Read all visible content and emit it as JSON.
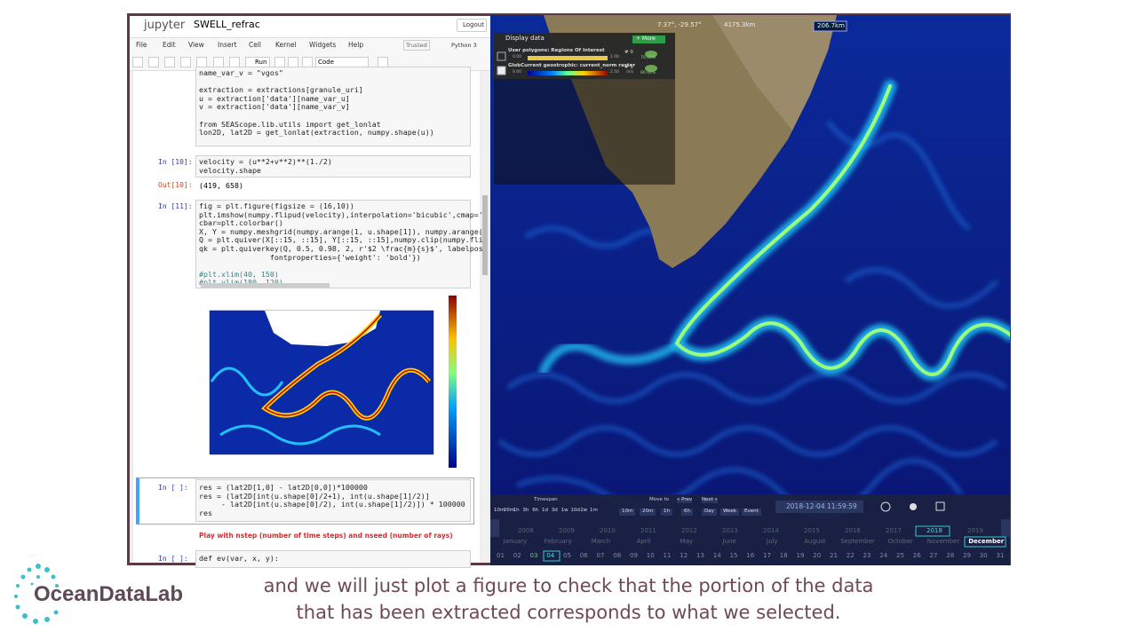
{
  "jupyter": {
    "logo": "jupyter",
    "notebook": "SWELL_refrac",
    "logout": "Logout",
    "menu": [
      "File",
      "Edit",
      "View",
      "Insert",
      "Cell",
      "Kernel",
      "Widgets",
      "Help"
    ],
    "trusted": "Trusted",
    "kernel": "Python 3",
    "run": "Run",
    "cell_type": "Code",
    "cells": [
      {
        "blocks": [
          [
            "name_var_v = \"vgos\""
          ],
          [
            "extraction = extractions[granule_uri]",
            "u = extraction['data'][name_var_u]",
            "v = extraction['data'][name_var_v]"
          ],
          [
            "from SEAScope.lib.utils import get_lonlat",
            "lon2D, lat2D = get_lonlat(extraction, numpy.shape(u))"
          ]
        ]
      },
      {
        "prompt": "In [10]:",
        "blocks": [
          [
            "velocity = (u**2+v**2)**(1./2)",
            "velocity.shape"
          ]
        ],
        "out_prompt": "Out[10]:",
        "output": "(419, 658)"
      },
      {
        "prompt": "In [11]:",
        "blocks": [
          [
            "fig = plt.figure(figsize = (16,10))",
            "plt.imshow(numpy.flipud(velocity),interpolation='bicubic',cmap='",
            "cbar=plt.colorbar()",
            "X, Y = numpy.meshgrid(numpy.arange(1, u.shape[1]), numpy.arange(",
            "Q = plt.quiver(X[::15, ::15], Y[::15, ::15],numpy.clip(numpy.fli",
            "qk = plt.quiverkey(Q, 0.5, 0.98, 2, r'$2 \\frac{m}{s}$', labelpos",
            "                fontproperties={'weight': 'bold'})"
          ],
          [
            "#plt.xlim(40, 150)",
            "#plt.ylim(180, 120)"
          ]
        ]
      },
      {
        "prompt": "In [ ]:",
        "blocks": [
          [
            "res = (lat2D[1,0] - lat2D[0,0])*100000",
            "res = (lat2D[int(u.shape[0]/2+1), int(u.shape[1]/2)]",
            "     - lat2D[int(u.shape[0]/2), int(u.shape[1]/2)]) * 100000",
            "res"
          ]
        ]
      },
      {
        "prompt": "In [ ]:",
        "blocks": [
          [
            "def ev(var, x, y):"
          ]
        ]
      }
    ],
    "note": "Play with nstep (number of time steps) and nseed (number of rays)"
  },
  "map": {
    "coords": "7.37°, -29.57°",
    "distance": "4175.3km",
    "scale": "206.7km",
    "panel": {
      "title": "Display data",
      "more": "+ More",
      "layers": [
        {
          "name": "User polygons: Regions Of Interest",
          "id": "# 0",
          "opacity": "70.00%",
          "min": "0.00",
          "max": "1.00"
        },
        {
          "name": "GlobCurrent geostrophic: current_norm raster",
          "id": "# 1",
          "opacity": "80.00%",
          "min": "0.00",
          "max": "2.50",
          "unit": "m/s"
        }
      ]
    },
    "timeline": {
      "timespan": "Timespan",
      "spans": [
        "10m",
        "20m",
        "1h",
        "3h",
        "6h",
        "1d",
        "3d",
        "1w",
        "10d",
        "2w",
        "1m"
      ],
      "move_to": "Move to",
      "prev": "« Prev",
      "next": "Next »",
      "steps": [
        "10m",
        "20m",
        "1h",
        "6h",
        "Day",
        "Week",
        "Event"
      ],
      "date": "2018-12-04 11:59:59",
      "years": [
        "2008",
        "2009",
        "2010",
        "2011",
        "2012",
        "2013",
        "2014",
        "2015",
        "2016",
        "2017",
        "2018",
        "2019"
      ],
      "months": [
        "January",
        "February",
        "March",
        "April",
        "May",
        "June",
        "July",
        "August",
        "September",
        "October",
        "November",
        "December"
      ],
      "days": [
        "01",
        "02",
        "03",
        "04",
        "05",
        "06",
        "07",
        "08",
        "09",
        "10",
        "11",
        "12",
        "13",
        "14",
        "15",
        "16",
        "17",
        "18",
        "19",
        "20",
        "21",
        "22",
        "23",
        "24",
        "25",
        "26",
        "27",
        "28",
        "29",
        "30",
        "31"
      ]
    }
  },
  "caption": [
    "and we will just plot a figure to check that the portion of the data",
    "that has been extracted corresponds to what we selected."
  ],
  "logo": "OceanDataLab"
}
